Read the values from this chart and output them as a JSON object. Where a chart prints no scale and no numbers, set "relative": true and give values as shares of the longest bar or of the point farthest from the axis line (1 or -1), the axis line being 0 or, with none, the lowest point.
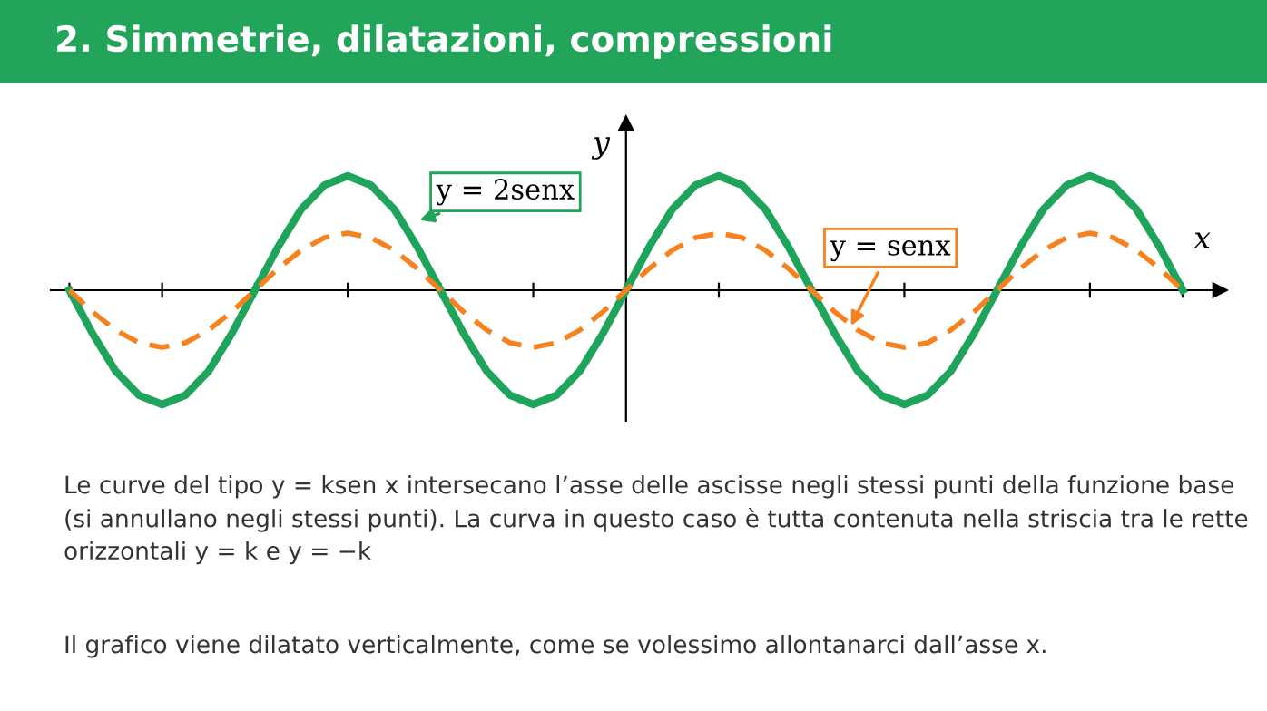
{
  "chart_data": {
    "type": "line",
    "title": "2. Simmetrie, dilatazioni, compressioni",
    "xlabel": "x",
    "ylabel": "y",
    "relative": true,
    "tick_labels": false,
    "legend": false,
    "grid": false,
    "categories": [
      null,
      null,
      null,
      null,
      null,
      null,
      null,
      null,
      null,
      null,
      null,
      null,
      null,
      null,
      null,
      null,
      null,
      null,
      null,
      null,
      null,
      null,
      null,
      null,
      null,
      null,
      null,
      null,
      null,
      null,
      null,
      null,
      null,
      null,
      null,
      null,
      null,
      null,
      null,
      null,
      null,
      null,
      null,
      null,
      null,
      null,
      null,
      null,
      null
    ],
    "series": [
      {
        "name": "y = 2senx",
        "color": "#1fa55b",
        "line_style": "solid",
        "values": [
          0,
          -0.38,
          -0.71,
          -0.92,
          -1,
          -0.92,
          -0.71,
          -0.38,
          0,
          0.38,
          0.71,
          0.92,
          1,
          0.92,
          0.71,
          0.38,
          0,
          -0.38,
          -0.71,
          -0.92,
          -1,
          -0.92,
          -0.71,
          -0.38,
          0,
          0.38,
          0.71,
          0.92,
          1,
          0.92,
          0.71,
          0.38,
          0,
          -0.38,
          -0.71,
          -0.92,
          -1,
          -0.92,
          -0.71,
          -0.38,
          0,
          0.38,
          0.71,
          0.92,
          1,
          0.92,
          0.71,
          0.38,
          0
        ]
      },
      {
        "name": "y = senx",
        "color": "#f5821f",
        "line_style": "dashed",
        "values": [
          0,
          -0.19,
          -0.35,
          -0.46,
          -0.5,
          -0.46,
          -0.35,
          -0.19,
          0,
          0.19,
          0.35,
          0.46,
          0.5,
          0.46,
          0.35,
          0.19,
          0,
          -0.19,
          -0.35,
          -0.46,
          -0.5,
          -0.46,
          -0.35,
          -0.19,
          0,
          0.19,
          0.35,
          0.46,
          0.5,
          0.46,
          0.35,
          0.19,
          0,
          -0.19,
          -0.35,
          -0.46,
          -0.5,
          -0.46,
          -0.35,
          -0.19,
          0,
          0.19,
          0.35,
          0.46,
          0.5,
          0.46,
          0.35,
          0.19,
          0
        ]
      }
    ],
    "annotations": [
      "Le curve del tipo y = ksen x intersecano l’asse delle ascisse negli stessi punti della funzione base (si annullano negli stessi punti). La curva in questo caso è tutta contenuta nella striscia tra le rette orizzontali y = k e y = −k",
      "Il grafico viene dilatato verticalmente, come se volessimo allontanarci dall’asse x."
    ]
  }
}
